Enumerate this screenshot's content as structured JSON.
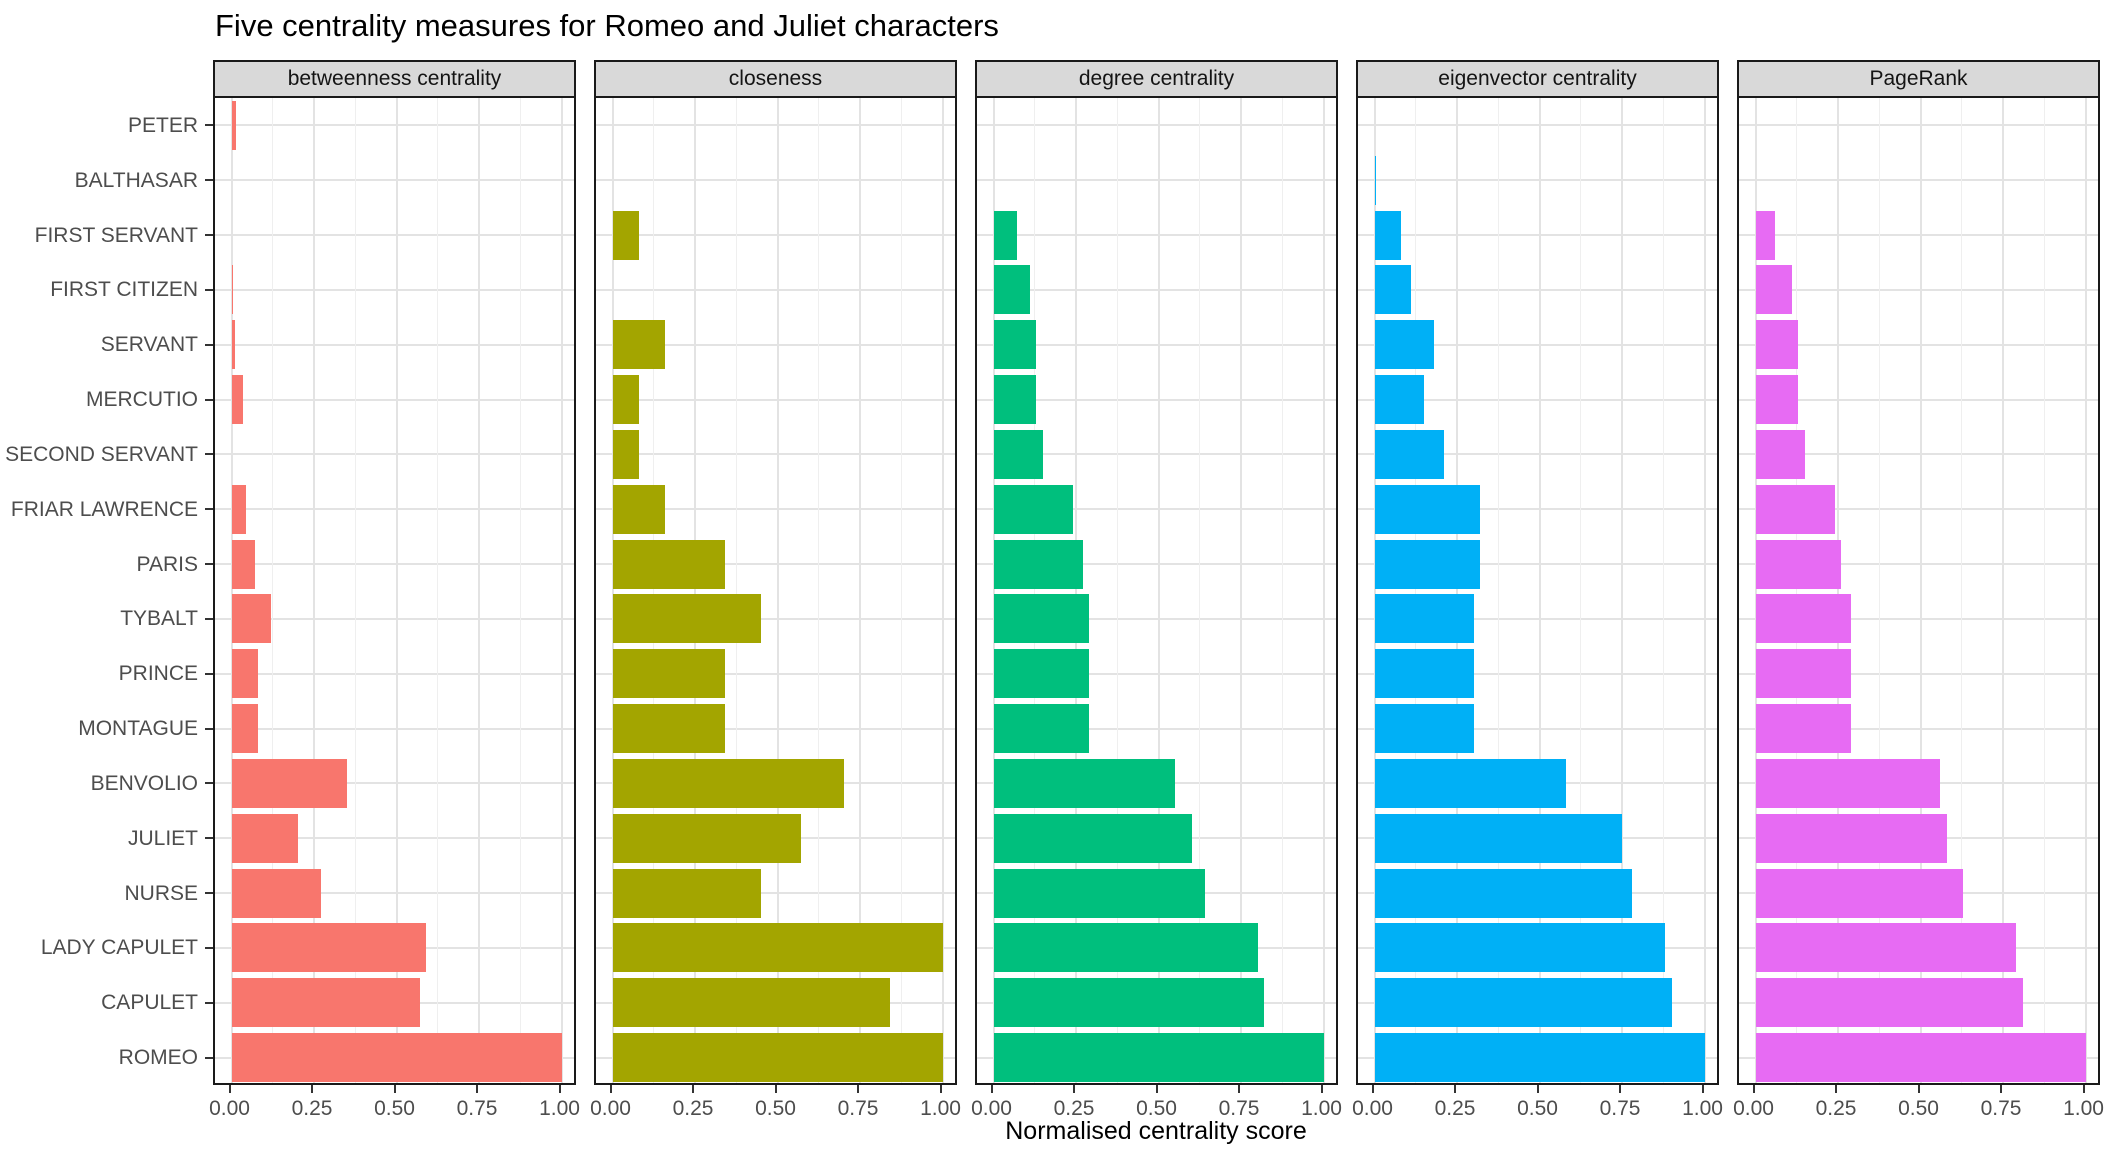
{
  "title": "Five centrality measures for Romeo and Juliet characters",
  "x_axis_title": "Normalised centrality score",
  "chart_data": {
    "type": "bar",
    "orientation": "horizontal",
    "title": "Five centrality measures for Romeo and Juliet characters",
    "xlabel": "Normalised centrality score",
    "ylabel": "",
    "xlim": [
      -0.05,
      1.05
    ],
    "grid": {
      "on": true,
      "major": [
        0,
        0.25,
        0.5,
        0.75,
        1.0
      ],
      "minor": [
        0.125,
        0.375,
        0.625,
        0.875
      ]
    },
    "legend_position": "none",
    "x_tick_labels": [
      "0.00",
      "0.25",
      "0.50",
      "0.75",
      "1.00"
    ],
    "x_tick_values": [
      0,
      0.25,
      0.5,
      0.75,
      1.0
    ],
    "categories_top_to_bottom": [
      "PETER",
      "BALTHASAR",
      "FIRST SERVANT",
      "FIRST CITIZEN",
      "SERVANT",
      "MERCUTIO",
      "SECOND SERVANT",
      "FRIAR LAWRENCE",
      "PARIS",
      "TYBALT",
      "PRINCE",
      "MONTAGUE",
      "BENVOLIO",
      "JULIET",
      "NURSE",
      "LADY CAPULET",
      "CAPULET",
      "ROMEO"
    ],
    "series": [
      {
        "name": "betweenness centrality",
        "color": "#F8766D",
        "values": [
          0.015,
          0,
          0,
          0.003,
          0.011,
          0.035,
          0,
          0.045,
          0.07,
          0.12,
          0.08,
          0.08,
          0.35,
          0.2,
          0.27,
          0.59,
          0.57,
          1.0
        ]
      },
      {
        "name": "closeness",
        "color": "#A3A500",
        "values": [
          0,
          0,
          0.08,
          0,
          0.16,
          0.08,
          0.08,
          0.16,
          0.34,
          0.45,
          0.34,
          0.34,
          0.7,
          0.57,
          0.45,
          1.0,
          0.84,
          1.0
        ]
      },
      {
        "name": "degree centrality",
        "color": "#00BF7D",
        "values": [
          0,
          0,
          0.07,
          0.11,
          0.13,
          0.13,
          0.15,
          0.24,
          0.27,
          0.29,
          0.29,
          0.29,
          0.55,
          0.6,
          0.64,
          0.8,
          0.82,
          1.0
        ]
      },
      {
        "name": "eigenvector centrality",
        "color": "#00B0F6",
        "values": [
          0,
          0.005,
          0.08,
          0.11,
          0.18,
          0.15,
          0.21,
          0.32,
          0.32,
          0.3,
          0.3,
          0.3,
          0.58,
          0.75,
          0.78,
          0.88,
          0.9,
          1.0
        ]
      },
      {
        "name": "PageRank",
        "color": "#E76BF3",
        "values": [
          0,
          0,
          0.06,
          0.11,
          0.13,
          0.13,
          0.15,
          0.24,
          0.26,
          0.29,
          0.29,
          0.29,
          0.56,
          0.58,
          0.63,
          0.79,
          0.81,
          1.0
        ]
      }
    ]
  },
  "style": {
    "strip_background": "#d9d9d9",
    "strip_text_color": "#141414",
    "panel_border_color": "#1a1a1a",
    "grid_major_color": "#e3e3e3",
    "grid_minor_color": "#efefef",
    "axis_text_color": "#4d4d4d",
    "tick_mark_color": "#333333",
    "title_color": "#000000"
  }
}
